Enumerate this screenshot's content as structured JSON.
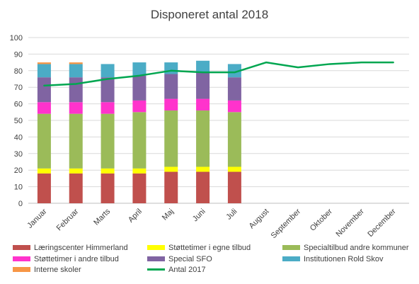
{
  "chart_data": {
    "type": "bar",
    "stacked": true,
    "title": "Disponeret antal 2018",
    "categories": [
      "Januar",
      "Februar",
      "Marts",
      "April",
      "Maj",
      "Juni",
      "Juli",
      "August",
      "September",
      "Oktober",
      "November",
      "December"
    ],
    "ylim": [
      0,
      100
    ],
    "yticks": [
      0,
      10,
      20,
      30,
      40,
      50,
      60,
      70,
      80,
      90,
      100
    ],
    "grid": true,
    "legend_position": "bottom",
    "series": [
      {
        "name": "Læringscenter Himmerland",
        "color": "#c0504d",
        "values": [
          18,
          18,
          18,
          18,
          19,
          19,
          19,
          null,
          null,
          null,
          null,
          null
        ]
      },
      {
        "name": "Støttetimer i egne tilbud",
        "color": "#ffff00",
        "values": [
          3,
          3,
          3,
          3,
          3,
          3,
          3,
          null,
          null,
          null,
          null,
          null
        ]
      },
      {
        "name": "Specialtilbud andre kommuner",
        "color": "#9bbb59",
        "values": [
          33,
          33,
          33,
          34,
          34,
          34,
          33,
          null,
          null,
          null,
          null,
          null
        ]
      },
      {
        "name": "Støttetimer i andre tilbud",
        "color": "#ff33cc",
        "values": [
          7,
          7,
          7,
          7,
          7,
          7,
          7,
          null,
          null,
          null,
          null,
          null
        ]
      },
      {
        "name": "Special SFO",
        "color": "#8064a2",
        "values": [
          15,
          15,
          15,
          15,
          15,
          16,
          14,
          null,
          null,
          null,
          null,
          null
        ]
      },
      {
        "name": "Institutionen Rold Skov",
        "color": "#4bacc6",
        "values": [
          8,
          8,
          8,
          8,
          7,
          7,
          8,
          null,
          null,
          null,
          null,
          null
        ]
      },
      {
        "name": "Interne skoler",
        "color": "#f79646",
        "values": [
          1,
          1,
          0,
          0,
          0,
          0,
          0,
          null,
          null,
          null,
          null,
          null
        ]
      }
    ],
    "line_series": [
      {
        "name": "Antal 2017",
        "color": "#00a650",
        "values": [
          71,
          72,
          75,
          77,
          80,
          79,
          79,
          85,
          82,
          84,
          85,
          85
        ]
      }
    ]
  }
}
